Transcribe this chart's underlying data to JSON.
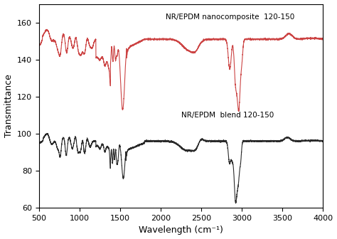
{
  "xlabel": "Wavelength (cm⁻¹)",
  "ylabel": "Transmittance",
  "xlim": [
    500,
    4000
  ],
  "ylim": [
    60,
    170
  ],
  "yticks": [
    60,
    80,
    100,
    120,
    140,
    160
  ],
  "xticks": [
    500,
    1000,
    1500,
    2000,
    2500,
    3000,
    3500,
    4000
  ],
  "nanocomposite_label": "NR/EPDM nanocomposite  120-150",
  "blend_label": "NR/EPDM  blend 120-150",
  "nanocomposite_color": "#cc4444",
  "blend_color": "#2a2a2a",
  "background_color": "#ffffff",
  "nano_baseline": 151.0,
  "blend_baseline": 96.0
}
